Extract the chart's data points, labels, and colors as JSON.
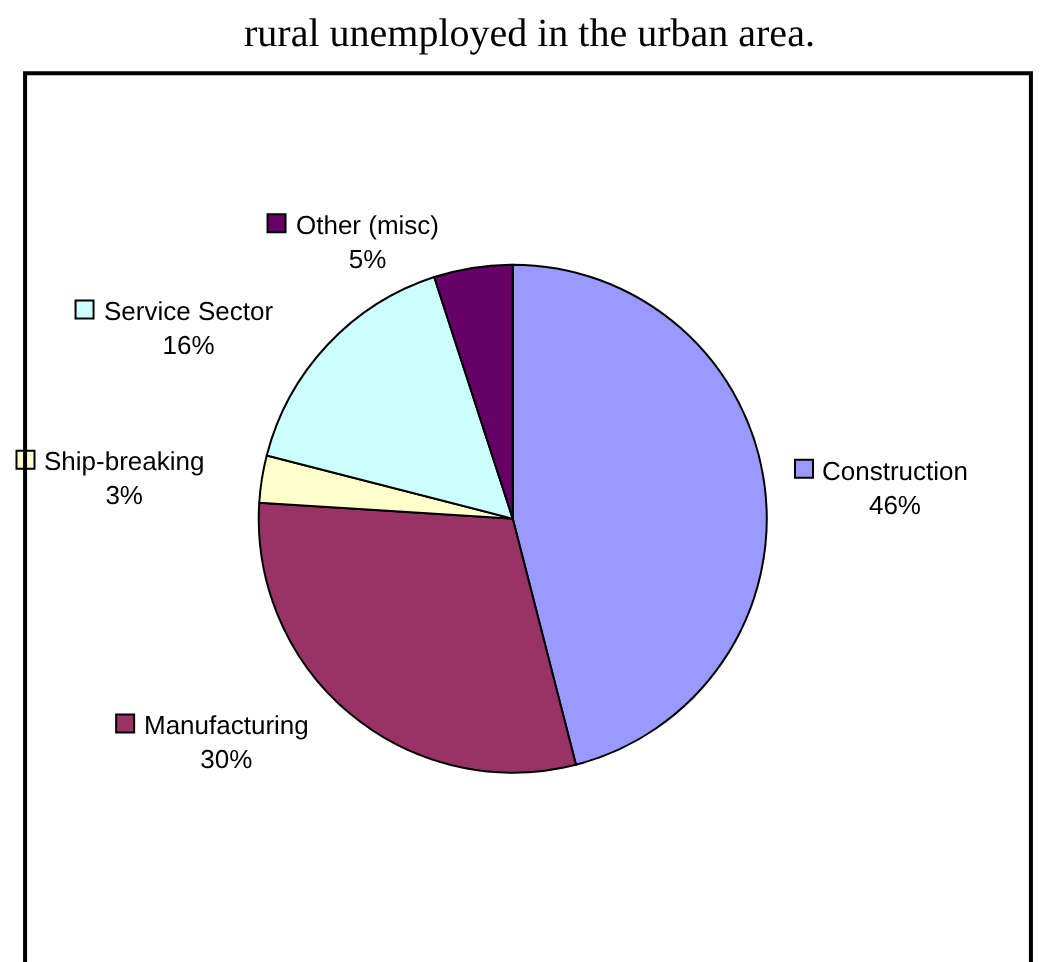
{
  "chart_data": {
    "type": "pie",
    "title": "rural unemployed in the urban area.",
    "categories": [
      "Construction",
      "Manufacturing",
      "Ship-breaking",
      "Service Sector",
      "Other (misc)"
    ],
    "values": [
      46,
      30,
      3,
      16,
      5
    ],
    "value_labels": [
      "46%",
      "30%",
      "3%",
      "16%",
      "5%"
    ],
    "colors": [
      "#9999ff",
      "#993366",
      "#ffffcc",
      "#ccffff",
      "#660066"
    ],
    "legend": "left"
  }
}
